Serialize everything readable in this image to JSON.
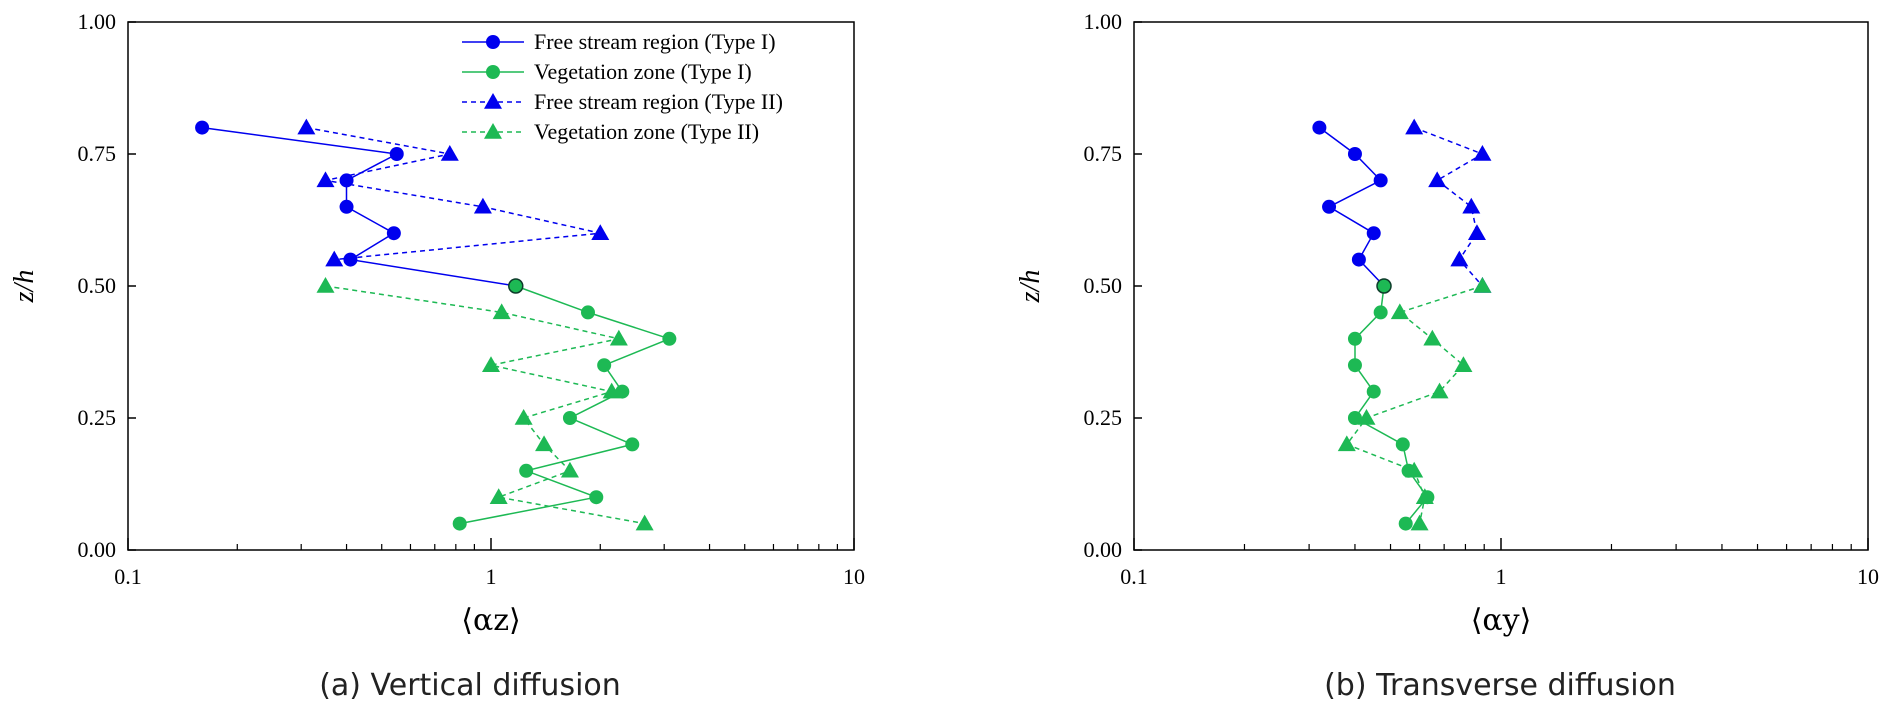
{
  "chart_data": [
    {
      "type": "line",
      "title": "(a) Vertical diffusion",
      "xlabel": "⟨αz⟩",
      "ylabel": "z/h",
      "xscale": "log",
      "xlim": [
        0.1,
        10
      ],
      "ylim": [
        0,
        1
      ],
      "xticks": [
        "0.1",
        "1",
        "10"
      ],
      "yticks": [
        "0.00",
        "0.25",
        "0.50",
        "0.75",
        "1.00"
      ],
      "legend_position": "top-right",
      "series": [
        {
          "name": "Free stream region (Type I)",
          "color": "#0000ee",
          "marker": "circle",
          "dashed": false,
          "points": [
            [
              0.16,
              0.8
            ],
            [
              0.55,
              0.75
            ],
            [
              0.4,
              0.7
            ],
            [
              0.4,
              0.65
            ],
            [
              0.54,
              0.6
            ],
            [
              0.41,
              0.55
            ],
            [
              1.17,
              0.5
            ]
          ]
        },
        {
          "name": "Vegetation zone (Type I)",
          "color": "#1db954",
          "marker": "circle",
          "dashed": false,
          "points": [
            [
              1.17,
              0.5
            ],
            [
              1.85,
              0.45
            ],
            [
              3.1,
              0.4
            ],
            [
              2.05,
              0.35
            ],
            [
              2.3,
              0.3
            ],
            [
              1.65,
              0.25
            ],
            [
              2.45,
              0.2
            ],
            [
              1.25,
              0.15
            ],
            [
              1.95,
              0.1
            ],
            [
              0.82,
              0.05
            ]
          ]
        },
        {
          "name": "Free stream region (Type II)",
          "color": "#0000ee",
          "marker": "triangle",
          "dashed": true,
          "points": [
            [
              0.31,
              0.8
            ],
            [
              0.77,
              0.75
            ],
            [
              0.35,
              0.7
            ],
            [
              0.95,
              0.65
            ],
            [
              2.0,
              0.6
            ],
            [
              0.37,
              0.55
            ]
          ]
        },
        {
          "name": "Vegetation zone (Type II)",
          "color": "#1db954",
          "marker": "triangle",
          "dashed": true,
          "points": [
            [
              0.35,
              0.5
            ],
            [
              1.07,
              0.45
            ],
            [
              2.25,
              0.4
            ],
            [
              1.0,
              0.35
            ],
            [
              2.15,
              0.3
            ],
            [
              1.23,
              0.25
            ],
            [
              1.4,
              0.2
            ],
            [
              1.65,
              0.15
            ],
            [
              1.05,
              0.1
            ],
            [
              2.65,
              0.05
            ]
          ]
        }
      ]
    },
    {
      "type": "line",
      "title": "(b) Transverse diffusion",
      "xlabel": "⟨αy⟩",
      "ylabel": "z/h",
      "xscale": "log",
      "xlim": [
        0.1,
        10
      ],
      "ylim": [
        0,
        1
      ],
      "xticks": [
        "0.1",
        "1",
        "10"
      ],
      "yticks": [
        "0.00",
        "0.25",
        "0.50",
        "0.75",
        "1.00"
      ],
      "series": [
        {
          "name": "Free stream region (Type I)",
          "color": "#0000ee",
          "marker": "circle",
          "dashed": false,
          "points": [
            [
              0.32,
              0.8
            ],
            [
              0.4,
              0.75
            ],
            [
              0.47,
              0.7
            ],
            [
              0.34,
              0.65
            ],
            [
              0.45,
              0.6
            ],
            [
              0.41,
              0.55
            ],
            [
              0.48,
              0.5
            ]
          ]
        },
        {
          "name": "Vegetation zone (Type I)",
          "color": "#1db954",
          "marker": "circle",
          "dashed": false,
          "points": [
            [
              0.48,
              0.5
            ],
            [
              0.47,
              0.45
            ],
            [
              0.4,
              0.4
            ],
            [
              0.4,
              0.35
            ],
            [
              0.45,
              0.3
            ],
            [
              0.4,
              0.25
            ],
            [
              0.54,
              0.2
            ],
            [
              0.56,
              0.15
            ],
            [
              0.63,
              0.1
            ],
            [
              0.55,
              0.05
            ]
          ]
        },
        {
          "name": "Free stream region (Type II)",
          "color": "#0000ee",
          "marker": "triangle",
          "dashed": true,
          "points": [
            [
              0.58,
              0.8
            ],
            [
              0.89,
              0.75
            ],
            [
              0.67,
              0.7
            ],
            [
              0.83,
              0.65
            ],
            [
              0.86,
              0.6
            ],
            [
              0.77,
              0.55
            ],
            [
              0.89,
              0.5
            ]
          ]
        },
        {
          "name": "Vegetation zone (Type II)",
          "color": "#1db954",
          "marker": "triangle",
          "dashed": true,
          "points": [
            [
              0.89,
              0.5
            ],
            [
              0.53,
              0.45
            ],
            [
              0.65,
              0.4
            ],
            [
              0.79,
              0.35
            ],
            [
              0.68,
              0.3
            ],
            [
              0.43,
              0.25
            ],
            [
              0.38,
              0.2
            ],
            [
              0.58,
              0.15
            ],
            [
              0.62,
              0.1
            ],
            [
              0.6,
              0.05
            ]
          ]
        }
      ]
    }
  ]
}
